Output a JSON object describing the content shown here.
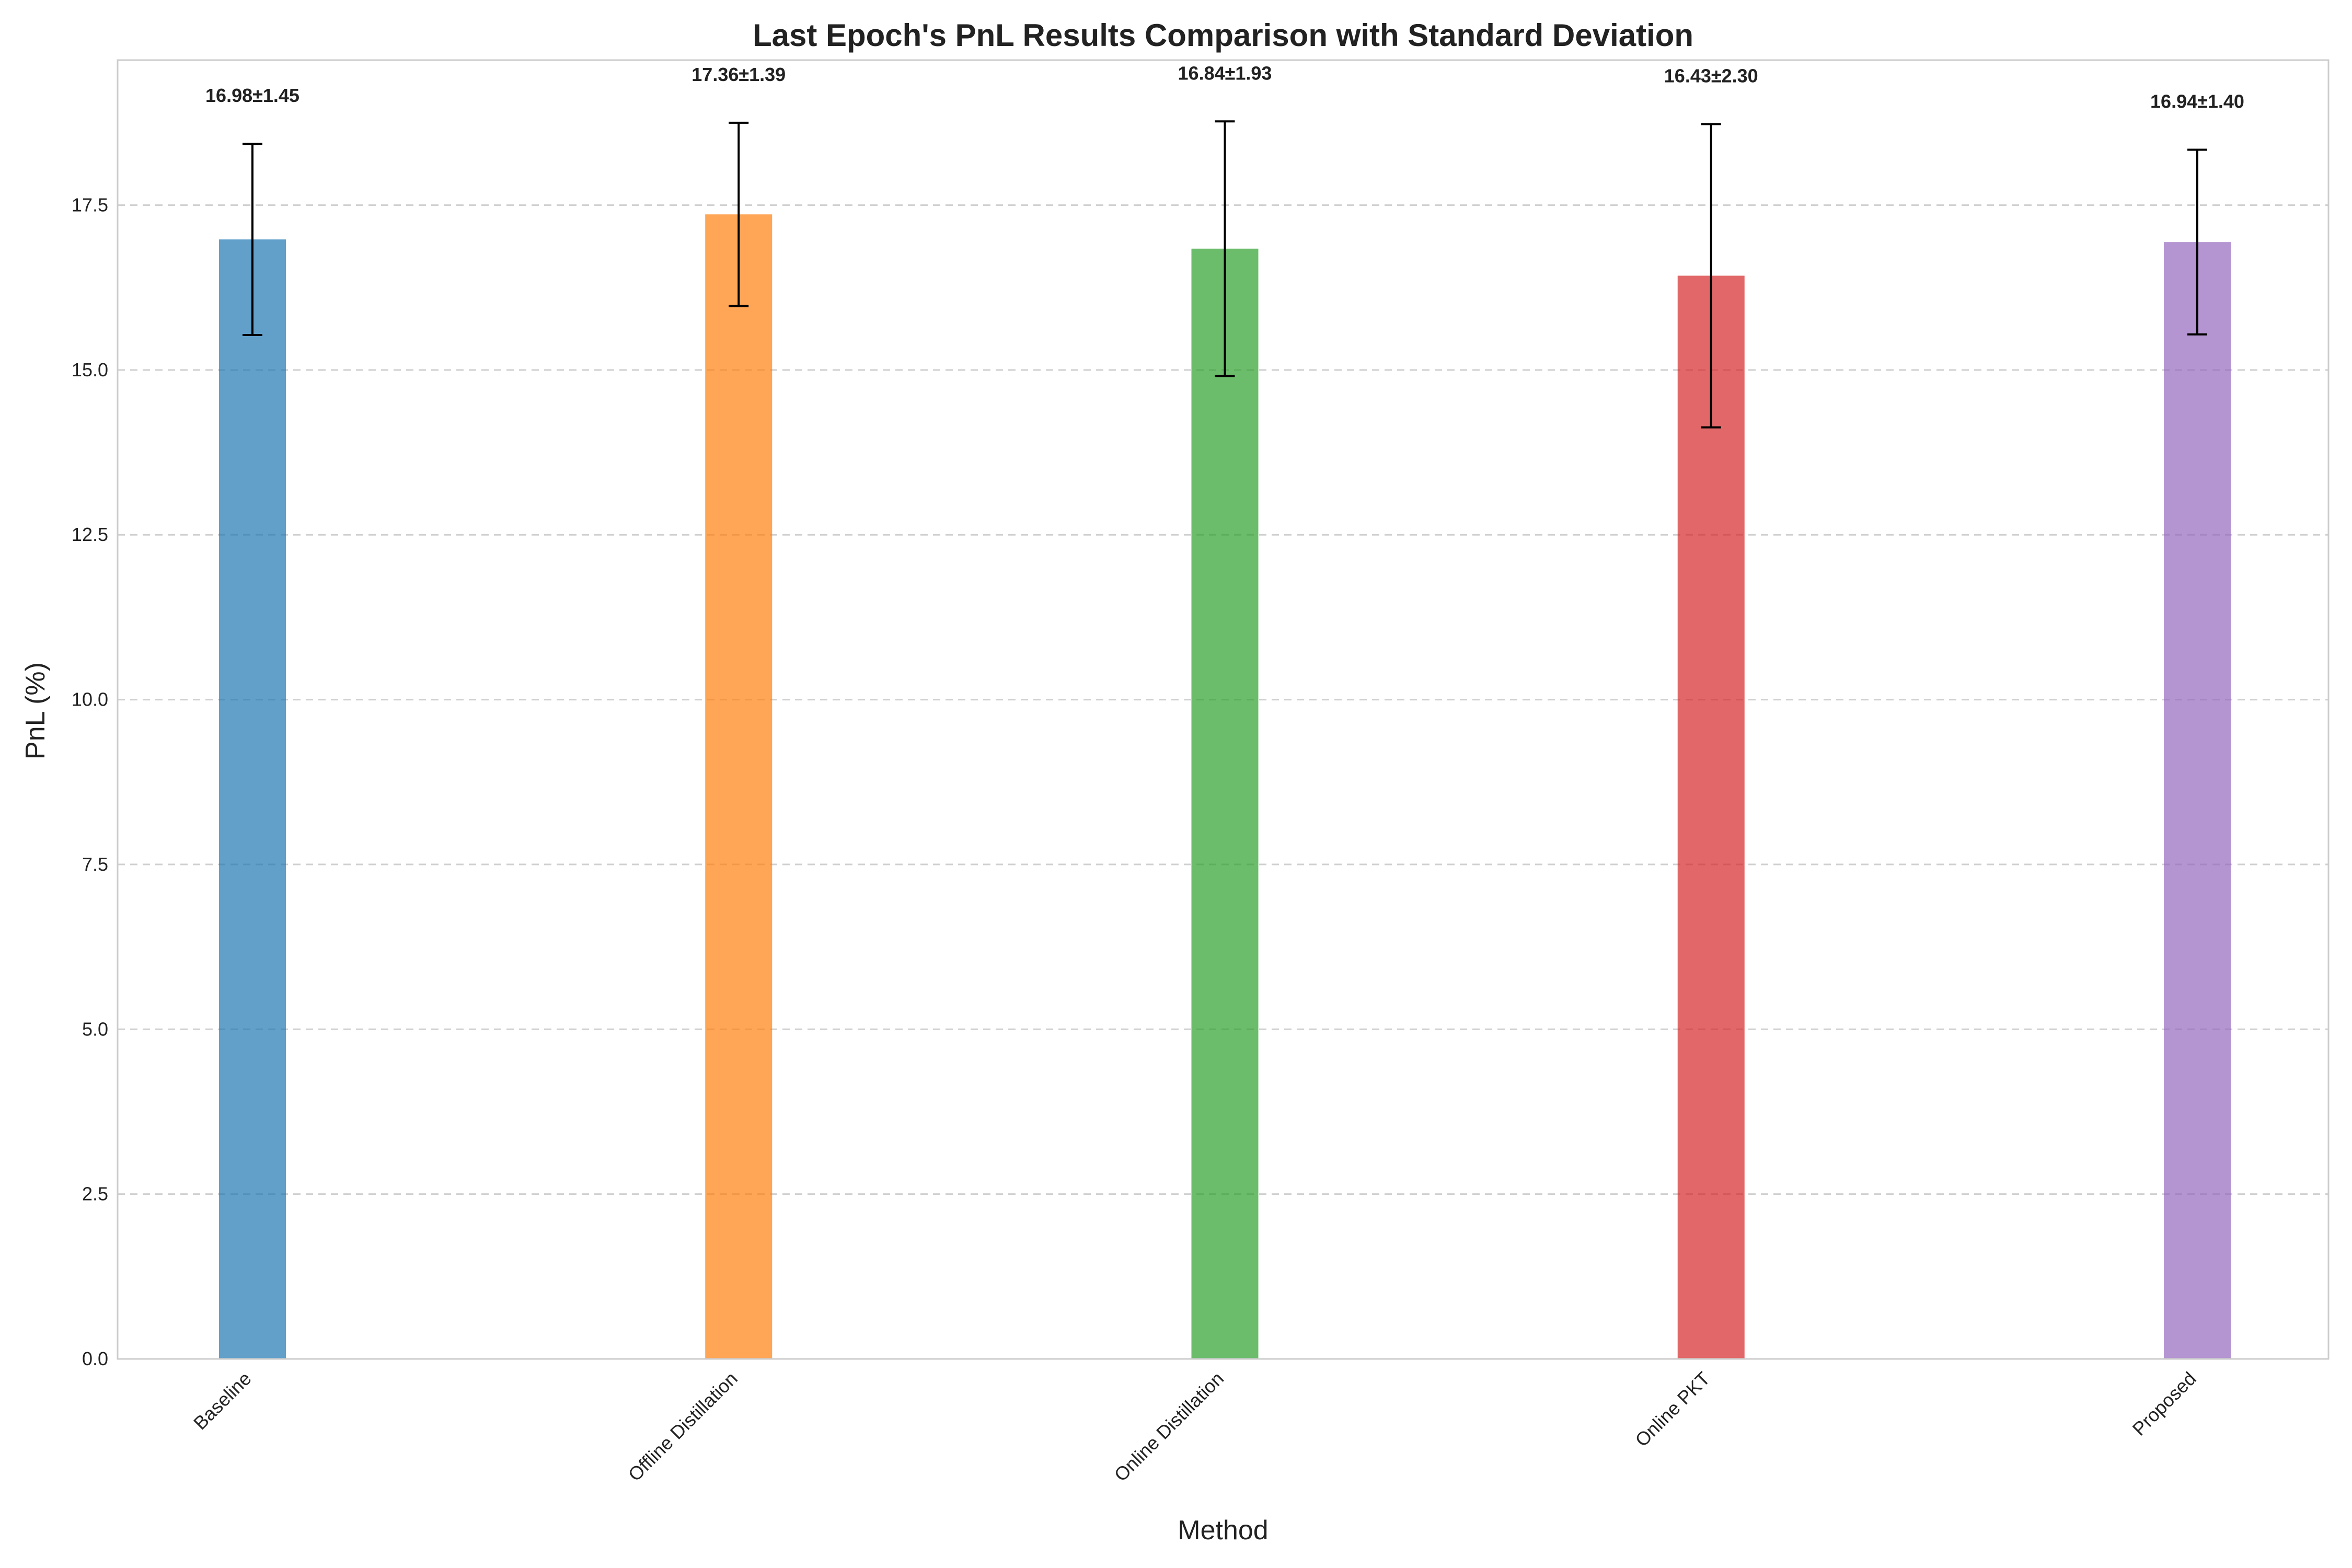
{
  "chart_data": {
    "type": "bar",
    "title": "Last Epoch's PnL Results Comparison with Standard Deviation",
    "xlabel": "Method",
    "ylabel": "PnL (%)",
    "categories": [
      "Baseline",
      "Offline Distillation",
      "Online Distillation",
      "Online PKT",
      "Proposed"
    ],
    "values": [
      16.98,
      17.36,
      16.84,
      16.43,
      16.94
    ],
    "errors": [
      1.45,
      1.39,
      1.93,
      2.3,
      1.4
    ],
    "data_labels": [
      "16.98±1.45",
      "17.36±1.39",
      "16.84±1.93",
      "16.43±2.30",
      "16.94±1.40"
    ],
    "colors": [
      "#1f77b4",
      "#ff7f0e",
      "#2ca02c",
      "#d62728",
      "#9467bd"
    ],
    "ylim": [
      0,
      19.7
    ],
    "yticks": [
      0.0,
      2.5,
      5.0,
      7.5,
      10.0,
      12.5,
      15.0,
      17.5
    ],
    "ytick_labels": [
      "0.0",
      "2.5",
      "5.0",
      "7.5",
      "10.0",
      "12.5",
      "15.0",
      "17.5"
    ],
    "grid": "y-dashed",
    "legend": "none"
  }
}
